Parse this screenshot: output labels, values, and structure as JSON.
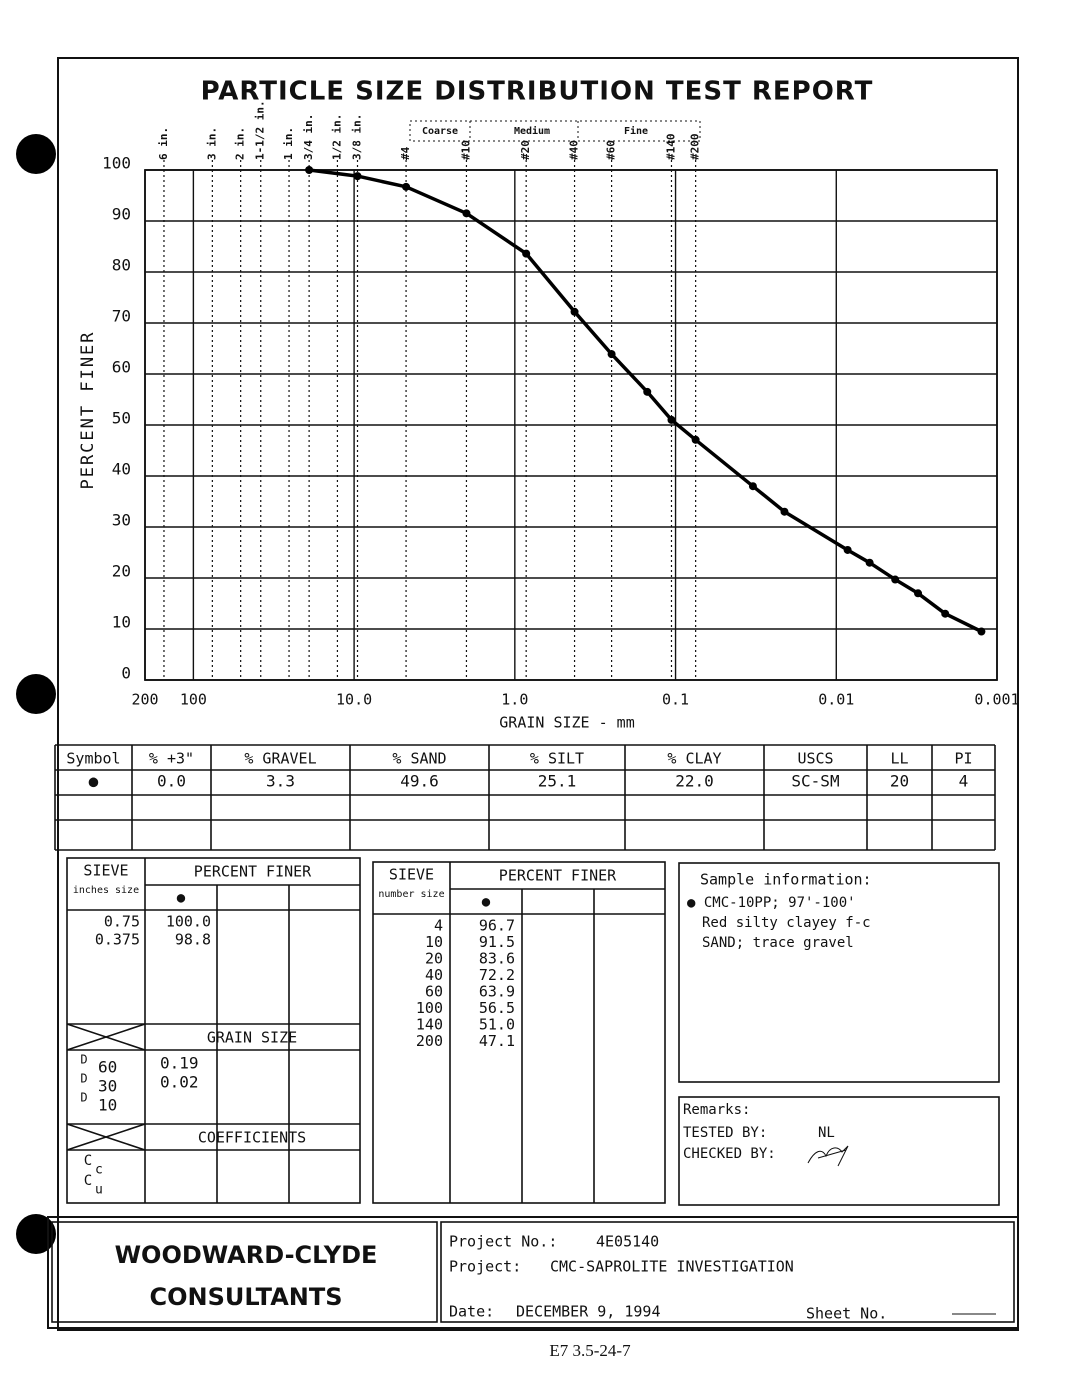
{
  "chart_data": {
    "type": "line",
    "title": "PARTICLE SIZE DISTRIBUTION TEST REPORT",
    "x_label": "GRAIN SIZE - mm",
    "y_label": "PERCENT FINER",
    "xlog": true,
    "grid": true,
    "xlim": [
      200,
      0.001
    ],
    "ylim": [
      0,
      100
    ],
    "xticks": [
      200,
      100,
      {
        "value": 10,
        "label": "10.0"
      },
      {
        "value": 1,
        "label": "1.0"
      },
      0.1,
      0.01,
      0.001
    ],
    "yticks": [
      0,
      10,
      20,
      30,
      40,
      50,
      60,
      70,
      80,
      90,
      100
    ],
    "sieves": [
      {
        "value": 152.4,
        "label": "6 in."
      },
      {
        "value": 76.2,
        "label": "3 in."
      },
      {
        "value": 50.8,
        "label": "2 in."
      },
      {
        "value": 38.1,
        "label": "1-1/2 in."
      },
      {
        "value": 25.4,
        "label": "1 in."
      },
      {
        "value": 19.05,
        "label": "3/4 in."
      },
      {
        "value": 12.7,
        "label": "1/2 in."
      },
      {
        "value": 9.525,
        "label": "3/8 in."
      },
      {
        "value": 4.75,
        "label": "#4"
      },
      {
        "value": 2.0,
        "label": "#10"
      },
      {
        "value": 0.85,
        "label": "#20"
      },
      {
        "value": 0.425,
        "label": "#40"
      },
      {
        "value": 0.25,
        "label": "#60"
      },
      {
        "value": 0.106,
        "label": "#140"
      },
      {
        "value": 0.075,
        "label": "#200"
      }
    ],
    "fractions": [
      "Coarse",
      "Medium",
      "Fine"
    ],
    "series": [
      {
        "color": "#000000",
        "x": [
          19.05,
          9.525,
          4.75,
          2.0,
          0.85,
          0.425,
          0.25,
          0.15,
          0.106,
          0.075,
          0.033,
          0.021,
          0.0085,
          0.0062,
          0.0043,
          0.0031,
          0.0021,
          0.00125
        ],
        "values": [
          100,
          98.8,
          96.7,
          91.5,
          83.6,
          72.2,
          63.9,
          56.5,
          51.0,
          47.1,
          38,
          33,
          25.5,
          23,
          19.7,
          17,
          13,
          9.5
        ]
      }
    ]
  },
  "summary_table": {
    "header": [
      "Symbol",
      "% +3\"",
      "% GRAVEL",
      "% SAND",
      "% SILT",
      "% CLAY",
      "USCS",
      "LL",
      "PI"
    ],
    "rows": [
      [
        "●",
        "0.0",
        "3.3",
        "49.6",
        "25.1",
        "22.0",
        "SC-SM",
        "20",
        "4"
      ]
    ]
  },
  "sieve_inches": {
    "sieve": "SIEVE",
    "unit": "inches size",
    "finer": "PERCENT FINER",
    "symbol": "●",
    "rows": [
      [
        "0.75",
        "100.0"
      ],
      [
        "0.375",
        "98.8"
      ]
    ],
    "grain_size": {
      "title": "GRAIN SIZE",
      "rows": [
        {
          "symbol": "D",
          "sub": "60",
          "value": "0.19"
        },
        {
          "symbol": "D",
          "sub": "30",
          "value": "0.02"
        },
        {
          "symbol": "D",
          "sub": "10"
        }
      ]
    },
    "coefficients": {
      "title": "COEFFICIENTS",
      "rows": [
        {
          "symbol": "C",
          "sub": "c"
        },
        {
          "symbol": "C",
          "sub": "u"
        }
      ]
    }
  },
  "sieve_number": {
    "sieve": "SIEVE",
    "unit": "number size",
    "finer": "PERCENT FINER",
    "symbol": "●",
    "rows": [
      [
        "4",
        "96.7"
      ],
      [
        "10",
        "91.5"
      ],
      [
        "20",
        "83.6"
      ],
      [
        "40",
        "72.2"
      ],
      [
        "60",
        "63.9"
      ],
      [
        "100",
        "56.5"
      ],
      [
        "140",
        "51.0"
      ],
      [
        "200",
        "47.1"
      ]
    ]
  },
  "sample_info": {
    "title": "Sample information:",
    "lines": [
      "● CMC-10PP;  97'-100'",
      "Red silty clayey f-c",
      "SAND;  trace gravel"
    ]
  },
  "remarks": {
    "title": "Remarks:",
    "tested_label": "TESTED BY:",
    "tested_by": "NL",
    "checked_label": "CHECKED BY:"
  },
  "footer": {
    "company": [
      "WOODWARD-CLYDE",
      "CONSULTANTS"
    ],
    "project_no_label": "Project No.:",
    "project_no": "4E05140",
    "project_label": "Project:",
    "project": "CMC-SAPROLITE INVESTIGATION",
    "date_label": "Date:",
    "date": "DECEMBER 9, 1994",
    "sheet_label": "Sheet No."
  },
  "page_code": "E7  3.5-24-7"
}
